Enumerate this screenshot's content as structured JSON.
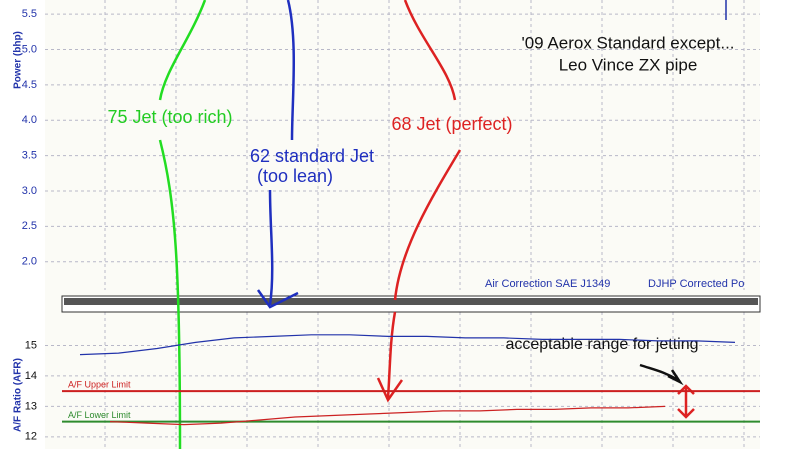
{
  "chart_data": [
    {
      "type": "line",
      "ylabel": "Power (bhp)",
      "ylim": [
        1.6,
        5.7
      ],
      "yticks": [
        {
          "value": 2,
          "label": "2.0"
        },
        {
          "value": 2.5,
          "label": "2.5"
        },
        {
          "value": 3,
          "label": "3.0"
        },
        {
          "value": 3.5,
          "label": "3.5"
        },
        {
          "value": 4,
          "label": "4.0"
        },
        {
          "value": 4.5,
          "label": "4.5"
        },
        {
          "value": 5,
          "label": "5.0"
        },
        {
          "value": 5.5,
          "label": "5.5"
        }
      ],
      "grid": true,
      "annotations": [
        "'09 Aerox Standard except...",
        "Leo Vince ZX pipe",
        "75 Jet (too rich)",
        "62 standard Jet",
        "(too lean)",
        "68 Jet (perfect)"
      ],
      "legend": [
        "Air Correction SAE J1349",
        "DJHP Corrected Po"
      ]
    },
    {
      "type": "line",
      "ylabel": "A/F Ratio (AFR)",
      "ylim": [
        11.6,
        16.1
      ],
      "yticks": [
        12,
        13,
        14,
        15
      ],
      "grid": true,
      "reference_lines": [
        {
          "label": "A/F Upper Limit",
          "value": 13.5,
          "color": "#cc1f1f"
        },
        {
          "label": "A/F Lower Limit",
          "value": 12.5,
          "color": "#2e8b2e"
        }
      ],
      "series": [
        {
          "color": "#2233aa",
          "values": [
            14.7,
            14.75,
            14.9,
            15.1,
            15.25,
            15.3,
            15.35,
            15.35,
            15.3,
            15.3,
            15.25,
            15.25,
            15.2,
            15.2,
            15.2,
            15.15,
            15.15,
            15.1
          ]
        },
        {
          "color": "#cc2222",
          "values": [
            12.5,
            12.45,
            12.4,
            12.45,
            12.55,
            12.65,
            12.7,
            12.75,
            12.8,
            12.85,
            12.85,
            12.9,
            12.9,
            12.95,
            12.95,
            13.0
          ]
        }
      ],
      "annotations": [
        "acceptable range for jetting"
      ]
    }
  ]
}
